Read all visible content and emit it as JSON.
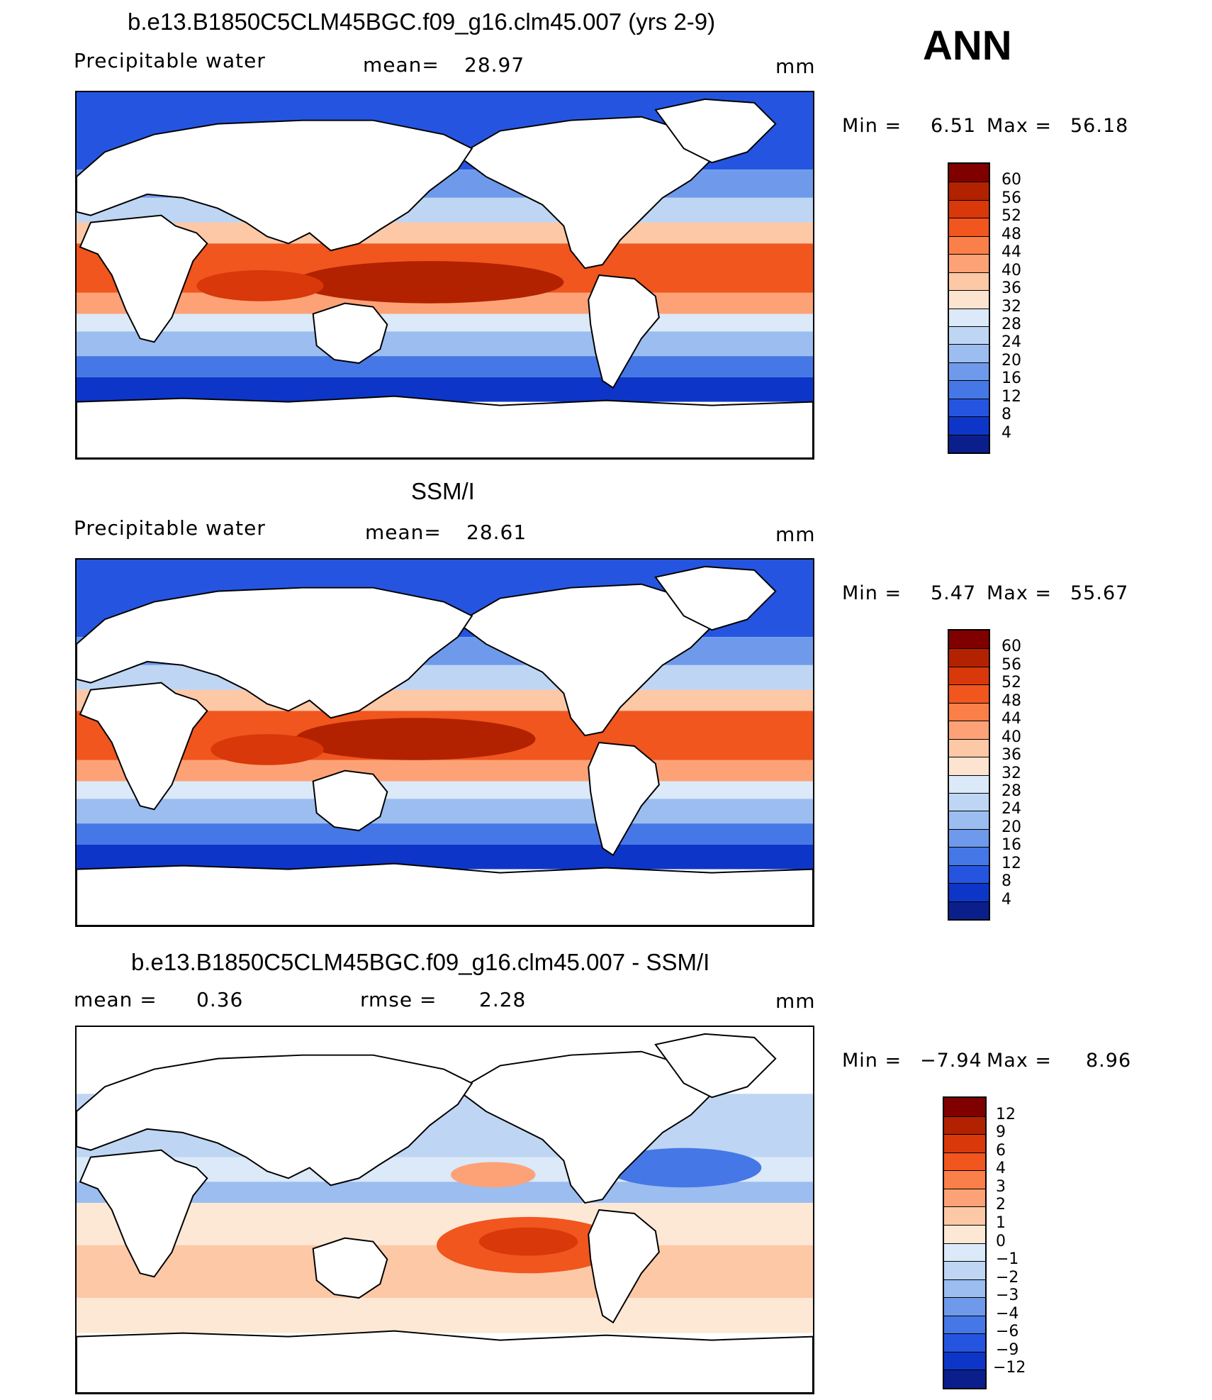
{
  "season": "ANN",
  "panels": [
    {
      "id": "model",
      "title": "b.e13.B1850C5CLM45BGC.f09_g16.clm45.007 (yrs 2-9)",
      "variable": "Precipitable  water",
      "stat1_label": "mean=",
      "stat1_value": "28.97",
      "units": "mm",
      "min_label": "Min  =",
      "min_value": "6.51",
      "max_label": "Max  =",
      "max_value": "56.18",
      "colorbar_labels": [
        "60",
        "56",
        "52",
        "48",
        "44",
        "40",
        "36",
        "32",
        "28",
        "24",
        "20",
        "16",
        "12",
        "8",
        "4"
      ],
      "colorbar_colors": [
        "#800000",
        "#b22200",
        "#d8380a",
        "#f0561e",
        "#fb7f48",
        "#fda277",
        "#fdc8a6",
        "#fde4d0",
        "#dbe9f8",
        "#bed6f3",
        "#9bbdf0",
        "#6f9aeb",
        "#4677e6",
        "#2555e0",
        "#0d36c8",
        "#0a1f8c"
      ]
    },
    {
      "id": "obs",
      "title": "SSM/I",
      "variable": "Precipitable  water",
      "stat1_label": "mean=",
      "stat1_value": "28.61",
      "units": "mm",
      "min_label": "Min  =",
      "min_value": "5.47",
      "max_label": "Max  =",
      "max_value": "55.67",
      "colorbar_labels": [
        "60",
        "56",
        "52",
        "48",
        "44",
        "40",
        "36",
        "32",
        "28",
        "24",
        "20",
        "16",
        "12",
        "8",
        "4"
      ],
      "colorbar_colors": [
        "#800000",
        "#b22200",
        "#d8380a",
        "#f0561e",
        "#fb7f48",
        "#fda277",
        "#fdc8a6",
        "#fde4d0",
        "#dbe9f8",
        "#bed6f3",
        "#9bbdf0",
        "#6f9aeb",
        "#4677e6",
        "#2555e0",
        "#0d36c8",
        "#0a1f8c"
      ]
    },
    {
      "id": "diff",
      "title": "b.e13.B1850C5CLM45BGC.f09_g16.clm45.007 - SSM/I",
      "stat1_label": "mean  =",
      "stat1_value": "0.36",
      "stat2_label": "rmse  =",
      "stat2_value": "2.28",
      "units": "mm",
      "min_label": "Min  =",
      "min_value": "−7.94",
      "max_label": "Max  =",
      "max_value": "8.96",
      "colorbar_labels": [
        "12",
        "9",
        "6",
        "4",
        "3",
        "2",
        "1",
        "0",
        "−1",
        "−2",
        "−3",
        "−4",
        "−6",
        "−9",
        "−12"
      ],
      "colorbar_colors": [
        "#800000",
        "#b22200",
        "#d8380a",
        "#f0561e",
        "#fb7f48",
        "#fda277",
        "#fdc8a6",
        "#fde8d6",
        "#dbe9f8",
        "#bed6f3",
        "#9bbdf0",
        "#6f9aeb",
        "#4677e6",
        "#2555e0",
        "#0d36c8",
        "#0a1f8c"
      ]
    }
  ]
}
